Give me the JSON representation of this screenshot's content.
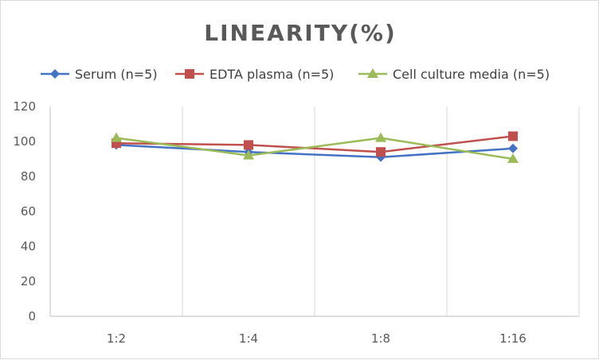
{
  "chart_data": {
    "type": "line",
    "title": "LINEARITY(%)",
    "xlabel": "",
    "ylabel": "",
    "categories": [
      "1:2",
      "1:4",
      "1:8",
      "1:16"
    ],
    "ylim": [
      0,
      120
    ],
    "yticks": [
      0,
      20,
      40,
      60,
      80,
      100,
      120
    ],
    "grid": "vertical",
    "legend_position": "top",
    "series": [
      {
        "name": "Serum (n=5)",
        "values": [
          98,
          94,
          91,
          96
        ],
        "color": "#4472c4",
        "marker": "diamond"
      },
      {
        "name": "EDTA plasma (n=5)",
        "values": [
          99,
          98,
          94,
          103
        ],
        "color": "#c0504d",
        "marker": "square"
      },
      {
        "name": "Cell culture media (n=5)",
        "values": [
          102,
          92,
          102,
          90
        ],
        "color": "#9bbb59",
        "marker": "triangle"
      }
    ]
  }
}
